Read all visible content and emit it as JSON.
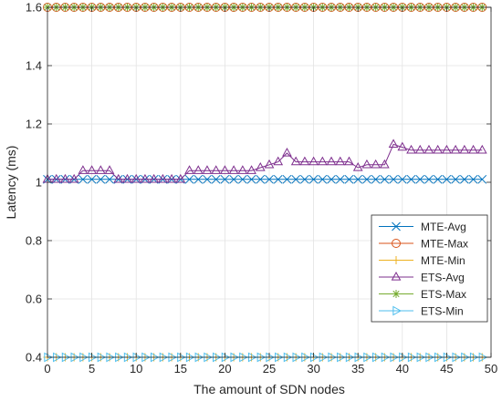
{
  "chart_data": {
    "type": "line",
    "xlabel": "The amount of SDN nodes",
    "ylabel": "Latency (ms)",
    "xlim": [
      0,
      50
    ],
    "ylim": [
      0.4,
      1.6
    ],
    "xticks": [
      0,
      5,
      10,
      15,
      20,
      25,
      30,
      35,
      40,
      45,
      50
    ],
    "yticks": [
      0.4,
      0.6,
      0.8,
      1,
      1.2,
      1.4,
      1.6
    ],
    "xtick_labels": [
      "0",
      "5",
      "10",
      "15",
      "20",
      "25",
      "30",
      "35",
      "40",
      "45",
      "50"
    ],
    "ytick_labels": [
      "0.4",
      "0.6",
      "0.8",
      "1",
      "1.2",
      "1.4",
      "1.6"
    ],
    "grid": true,
    "legend_position": "right",
    "x": [
      0,
      1,
      2,
      3,
      4,
      5,
      6,
      7,
      8,
      9,
      10,
      11,
      12,
      13,
      14,
      15,
      16,
      17,
      18,
      19,
      20,
      21,
      22,
      23,
      24,
      25,
      26,
      27,
      28,
      29,
      30,
      31,
      32,
      33,
      34,
      35,
      36,
      37,
      38,
      39,
      40,
      41,
      42,
      43,
      44,
      45,
      46,
      47,
      48,
      49
    ],
    "series": [
      {
        "name": "MTE-Avg",
        "color": "#0072BD",
        "marker": "x",
        "values": [
          1.01,
          1.01,
          1.01,
          1.01,
          1.01,
          1.01,
          1.01,
          1.01,
          1.01,
          1.01,
          1.01,
          1.01,
          1.01,
          1.01,
          1.01,
          1.01,
          1.01,
          1.01,
          1.01,
          1.01,
          1.01,
          1.01,
          1.01,
          1.01,
          1.01,
          1.01,
          1.01,
          1.01,
          1.01,
          1.01,
          1.01,
          1.01,
          1.01,
          1.01,
          1.01,
          1.01,
          1.01,
          1.01,
          1.01,
          1.01,
          1.01,
          1.01,
          1.01,
          1.01,
          1.01,
          1.01,
          1.01,
          1.01,
          1.01,
          1.01
        ]
      },
      {
        "name": "MTE-Max",
        "color": "#D95319",
        "marker": "o",
        "values": [
          1.6,
          1.6,
          1.6,
          1.6,
          1.6,
          1.6,
          1.6,
          1.6,
          1.6,
          1.6,
          1.6,
          1.6,
          1.6,
          1.6,
          1.6,
          1.6,
          1.6,
          1.6,
          1.6,
          1.6,
          1.6,
          1.6,
          1.6,
          1.6,
          1.6,
          1.6,
          1.6,
          1.6,
          1.6,
          1.6,
          1.6,
          1.6,
          1.6,
          1.6,
          1.6,
          1.6,
          1.6,
          1.6,
          1.6,
          1.6,
          1.6,
          1.6,
          1.6,
          1.6,
          1.6,
          1.6,
          1.6,
          1.6,
          1.6,
          1.6
        ]
      },
      {
        "name": "MTE-Min",
        "color": "#EDB120",
        "marker": "+",
        "values": [
          0.4,
          0.4,
          0.4,
          0.4,
          0.4,
          0.4,
          0.4,
          0.4,
          0.4,
          0.4,
          0.4,
          0.4,
          0.4,
          0.4,
          0.4,
          0.4,
          0.4,
          0.4,
          0.4,
          0.4,
          0.4,
          0.4,
          0.4,
          0.4,
          0.4,
          0.4,
          0.4,
          0.4,
          0.4,
          0.4,
          0.4,
          0.4,
          0.4,
          0.4,
          0.4,
          0.4,
          0.4,
          0.4,
          0.4,
          0.4,
          0.4,
          0.4,
          0.4,
          0.4,
          0.4,
          0.4,
          0.4,
          0.4,
          0.4,
          0.4
        ]
      },
      {
        "name": "ETS-Avg",
        "color": "#7E2F8E",
        "marker": "triangle-up",
        "values": [
          1.01,
          1.01,
          1.01,
          1.01,
          1.04,
          1.04,
          1.04,
          1.04,
          1.01,
          1.01,
          1.01,
          1.01,
          1.01,
          1.01,
          1.01,
          1.01,
          1.04,
          1.04,
          1.04,
          1.04,
          1.04,
          1.04,
          1.04,
          1.04,
          1.05,
          1.06,
          1.07,
          1.1,
          1.07,
          1.07,
          1.07,
          1.07,
          1.07,
          1.07,
          1.07,
          1.05,
          1.06,
          1.06,
          1.06,
          1.13,
          1.12,
          1.11,
          1.11,
          1.11,
          1.11,
          1.11,
          1.11,
          1.11,
          1.11,
          1.11
        ]
      },
      {
        "name": "ETS-Max",
        "color": "#77AC30",
        "marker": "*",
        "values": [
          1.6,
          1.6,
          1.6,
          1.6,
          1.6,
          1.6,
          1.6,
          1.6,
          1.6,
          1.6,
          1.6,
          1.6,
          1.6,
          1.6,
          1.6,
          1.6,
          1.6,
          1.6,
          1.6,
          1.6,
          1.6,
          1.6,
          1.6,
          1.6,
          1.6,
          1.6,
          1.6,
          1.6,
          1.6,
          1.6,
          1.6,
          1.6,
          1.6,
          1.6,
          1.6,
          1.6,
          1.6,
          1.6,
          1.6,
          1.6,
          1.6,
          1.6,
          1.6,
          1.6,
          1.6,
          1.6,
          1.6,
          1.6,
          1.6,
          1.6
        ]
      },
      {
        "name": "ETS-Min",
        "color": "#4DBEEE",
        "marker": "triangle-right",
        "values": [
          0.4,
          0.4,
          0.4,
          0.4,
          0.4,
          0.4,
          0.4,
          0.4,
          0.4,
          0.4,
          0.4,
          0.4,
          0.4,
          0.4,
          0.4,
          0.4,
          0.4,
          0.4,
          0.4,
          0.4,
          0.4,
          0.4,
          0.4,
          0.4,
          0.4,
          0.4,
          0.4,
          0.4,
          0.4,
          0.4,
          0.4,
          0.4,
          0.4,
          0.4,
          0.4,
          0.4,
          0.4,
          0.4,
          0.4,
          0.4,
          0.4,
          0.4,
          0.4,
          0.4,
          0.4,
          0.4,
          0.4,
          0.4,
          0.4,
          0.4
        ]
      }
    ]
  }
}
